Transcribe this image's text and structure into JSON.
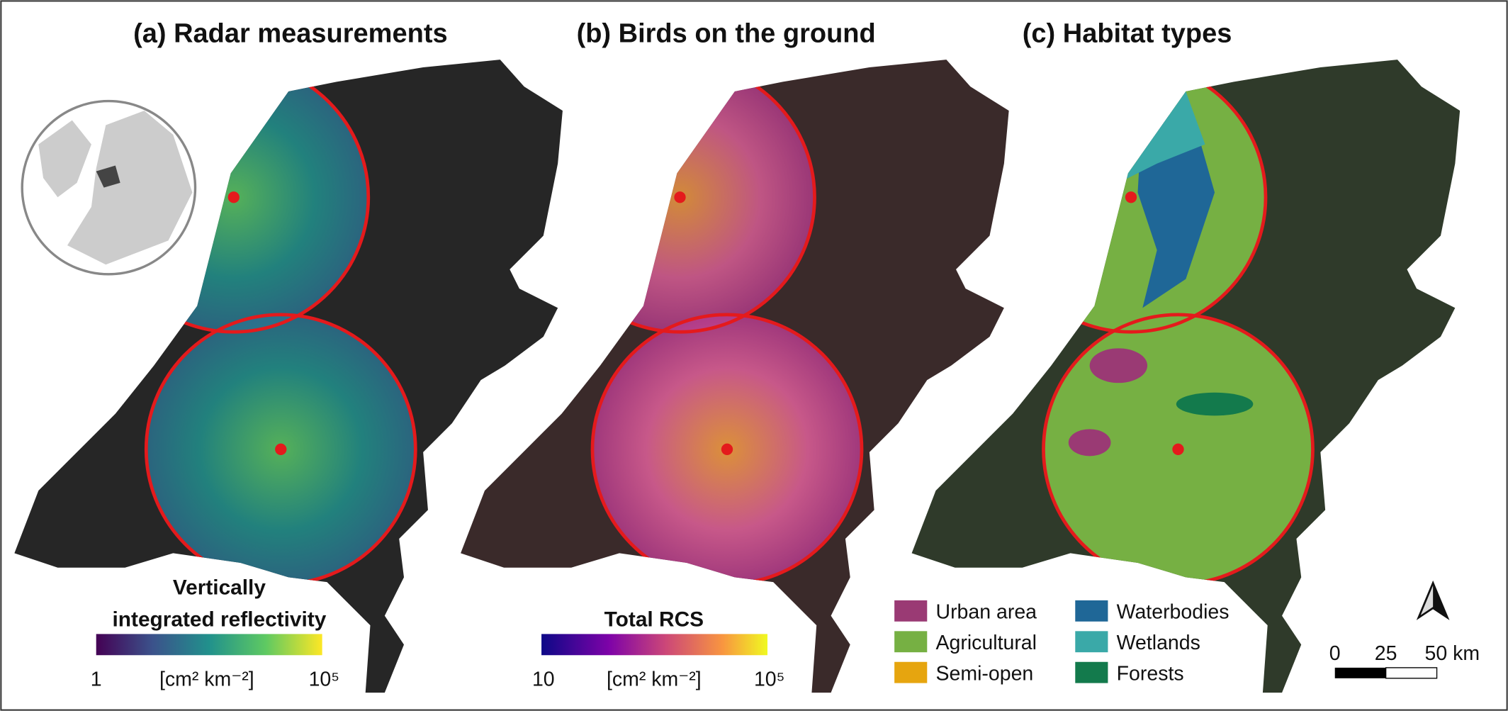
{
  "panels": [
    {
      "title": "(a) Radar measurements",
      "colorbar": {
        "title": [
          "Vertically",
          "integrated reflectivity"
        ],
        "min_label": "1",
        "unit": "[cm² km⁻²]",
        "max_label": "10⁵"
      }
    },
    {
      "title": "(b) Birds on the ground",
      "colorbar": {
        "title": [
          "Total RCS"
        ],
        "min_label": "10",
        "unit": "[cm² km⁻²]",
        "max_label": "10⁵"
      }
    },
    {
      "title": "(c) Habitat types",
      "legend": [
        {
          "label": "Urban area",
          "color": "#9a3a74"
        },
        {
          "label": "Agricultural",
          "color": "#76b043"
        },
        {
          "label": "Semi-open",
          "color": "#e6a50f"
        },
        {
          "label": "Waterbodies",
          "color": "#1f6797"
        },
        {
          "label": "Wetlands",
          "color": "#3aa9a8"
        },
        {
          "label": "Forests",
          "color": "#137a4c"
        }
      ]
    }
  ],
  "scale_bar": {
    "labels": [
      "0",
      "25",
      "50 km"
    ]
  }
}
